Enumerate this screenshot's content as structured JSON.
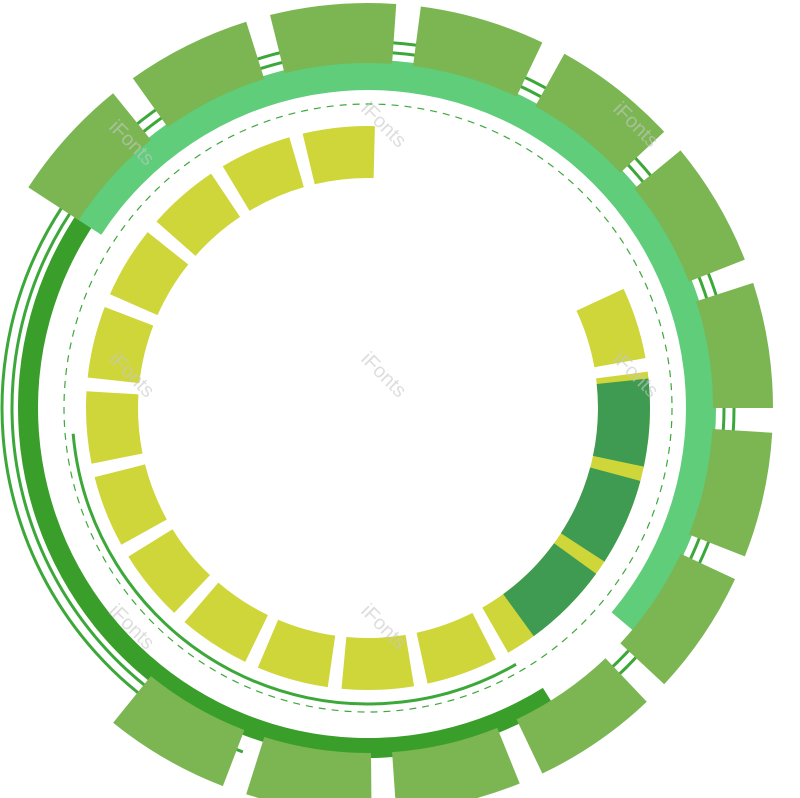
{
  "graphic": {
    "colors": {
      "outer_segments": "#7bb653",
      "dark_ring": "#3a9e2a",
      "light_band": "#5fcd7a",
      "yellow_segments": "#cfd63a",
      "dark_teal_segments": "#3f9b52",
      "thin_rings": "#3da83a",
      "dashed_ring": "#3da83a",
      "background": "#ffffff"
    },
    "icons": {
      "outer-ring": "segmented-arc",
      "inner-ring": "segmented-arc",
      "accent-ring": "segmented-arc"
    }
  },
  "watermarks": [
    "iFonts",
    "iFonts",
    "iFonts",
    "iFonts",
    "iFonts",
    "iFonts",
    "iFonts",
    "iFonts"
  ]
}
